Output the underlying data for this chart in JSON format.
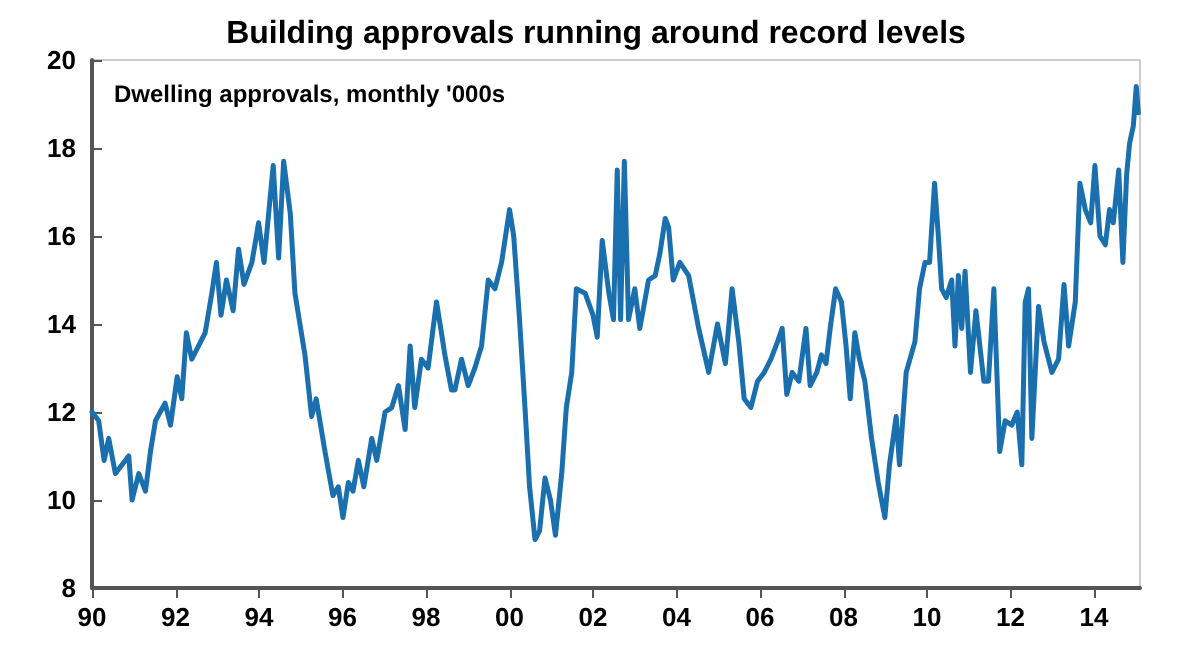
{
  "chart_data": {
    "type": "line",
    "title": "Building approvals running around record levels",
    "subtitle": "Dwelling approvals, monthly '000s",
    "series": [
      {
        "color": "#1a6fae",
        "x": [
          1990.0,
          1990.16,
          1990.29,
          1990.4,
          1990.56,
          1990.72,
          1990.88,
          1990.96,
          1991.12,
          1991.28,
          1991.4,
          1991.52,
          1991.75,
          1991.88,
          1992.04,
          1992.15,
          1992.26,
          1992.39,
          1992.71,
          1992.87,
          1992.98,
          1993.09,
          1993.22,
          1993.38,
          1993.51,
          1993.64,
          1993.83,
          1993.99,
          1994.12,
          1994.34,
          1994.47,
          1994.59,
          1994.75,
          1994.86,
          1995.1,
          1995.26,
          1995.37,
          1995.58,
          1995.77,
          1995.9,
          1996.01,
          1996.14,
          1996.25,
          1996.38,
          1996.51,
          1996.7,
          1996.82,
          1997.02,
          1997.18,
          1997.34,
          1997.5,
          1997.62,
          1997.73,
          1997.89,
          1998.05,
          1998.25,
          1998.37,
          1998.45,
          1998.61,
          1998.69,
          1998.85,
          1999.01,
          1999.17,
          1999.33,
          1999.49,
          1999.65,
          1999.81,
          2000.0,
          2000.1,
          2000.24,
          2000.37,
          2000.48,
          2000.61,
          2000.72,
          2000.85,
          2000.98,
          2001.1,
          2001.25,
          2001.36,
          2001.49,
          2001.6,
          2001.81,
          2002.0,
          2002.1,
          2002.22,
          2002.38,
          2002.49,
          2002.58,
          2002.66,
          2002.75,
          2002.85,
          2003.0,
          2003.12,
          2003.33,
          2003.49,
          2003.6,
          2003.73,
          2003.81,
          2003.92,
          2004.08,
          2004.29,
          2004.53,
          2004.77,
          2004.98,
          2005.17,
          2005.33,
          2005.49,
          2005.62,
          2005.78,
          2005.94,
          2006.1,
          2006.26,
          2006.42,
          2006.53,
          2006.64,
          2006.77,
          2006.93,
          2007.1,
          2007.2,
          2007.36,
          2007.47,
          2007.58,
          2007.68,
          2007.81,
          2007.95,
          2008.06,
          2008.16,
          2008.27,
          2008.38,
          2008.51,
          2008.67,
          2008.83,
          2008.99,
          2009.1,
          2009.26,
          2009.34,
          2009.5,
          2009.71,
          2009.82,
          2009.95,
          2010.06,
          2010.18,
          2010.27,
          2010.35,
          2010.46,
          2010.59,
          2010.67,
          2010.75,
          2010.83,
          2010.91,
          2011.04,
          2011.17,
          2011.36,
          2011.47,
          2011.6,
          2011.74,
          2011.87,
          2012.03,
          2012.16,
          2012.27,
          2012.35,
          2012.43,
          2012.51,
          2012.67,
          2012.8,
          2012.99,
          2013.15,
          2013.28,
          2013.39,
          2013.55,
          2013.66,
          2013.79,
          2013.92,
          2014.02,
          2014.14,
          2014.27,
          2014.37,
          2014.46,
          2014.59,
          2014.69,
          2014.78,
          2014.85,
          2014.94,
          2015.01,
          2015.06
        ],
        "values": [
          12.0,
          11.8,
          10.9,
          11.4,
          10.6,
          10.8,
          11.0,
          10.0,
          10.6,
          10.2,
          11.1,
          11.8,
          12.2,
          11.7,
          12.8,
          12.3,
          13.8,
          13.2,
          13.8,
          14.7,
          15.4,
          14.2,
          15.0,
          14.3,
          15.7,
          14.9,
          15.4,
          16.3,
          15.4,
          17.6,
          15.5,
          17.7,
          16.5,
          14.7,
          13.3,
          11.9,
          12.3,
          11.1,
          10.1,
          10.3,
          9.6,
          10.4,
          10.2,
          10.9,
          10.3,
          11.4,
          10.9,
          12.0,
          12.1,
          12.6,
          11.6,
          13.5,
          12.1,
          13.2,
          13.0,
          14.5,
          13.8,
          13.3,
          12.5,
          12.5,
          13.2,
          12.6,
          13.0,
          13.5,
          15.0,
          14.8,
          15.4,
          16.6,
          16.0,
          14.1,
          12.1,
          10.3,
          9.1,
          9.3,
          10.5,
          10.0,
          9.2,
          10.6,
          12.1,
          12.9,
          14.8,
          14.7,
          14.2,
          13.7,
          15.9,
          14.7,
          14.1,
          17.5,
          14.1,
          17.7,
          14.1,
          14.8,
          13.9,
          15.0,
          15.1,
          15.6,
          16.4,
          16.2,
          15.0,
          15.4,
          15.1,
          13.9,
          12.9,
          14.0,
          13.1,
          14.8,
          13.6,
          12.3,
          12.1,
          12.7,
          12.9,
          13.2,
          13.6,
          13.9,
          12.4,
          12.9,
          12.7,
          13.9,
          12.6,
          12.9,
          13.3,
          13.1,
          13.9,
          14.8,
          14.5,
          13.5,
          12.3,
          13.8,
          13.2,
          12.7,
          11.4,
          10.4,
          9.6,
          10.8,
          11.9,
          10.8,
          12.9,
          13.6,
          14.8,
          15.4,
          15.4,
          17.2,
          16.0,
          14.8,
          14.6,
          15.0,
          13.5,
          15.1,
          13.9,
          15.2,
          12.9,
          14.3,
          12.7,
          12.7,
          14.8,
          11.1,
          11.8,
          11.7,
          12.0,
          10.8,
          14.5,
          14.8,
          11.4,
          14.4,
          13.6,
          12.9,
          13.2,
          14.9,
          13.5,
          14.5,
          17.2,
          16.6,
          16.3,
          17.6,
          16.0,
          15.8,
          16.6,
          16.3,
          17.5,
          15.4,
          17.4,
          18.1,
          18.5,
          19.4,
          18.8
        ]
      }
    ],
    "xlim": [
      1990,
      2015.1
    ],
    "xticks": [
      {
        "value": 1990,
        "label": "90"
      },
      {
        "value": 1992,
        "label": "92"
      },
      {
        "value": 1994,
        "label": "94"
      },
      {
        "value": 1996,
        "label": "96"
      },
      {
        "value": 1998,
        "label": "98"
      },
      {
        "value": 2000,
        "label": "00"
      },
      {
        "value": 2002,
        "label": "02"
      },
      {
        "value": 2004,
        "label": "04"
      },
      {
        "value": 2006,
        "label": "06"
      },
      {
        "value": 2008,
        "label": "08"
      },
      {
        "value": 2010,
        "label": "10"
      },
      {
        "value": 2012,
        "label": "12"
      },
      {
        "value": 2014,
        "label": "14"
      }
    ],
    "ylim": [
      8,
      20
    ],
    "yticks": [
      8,
      10,
      12,
      14,
      16,
      18,
      20
    ],
    "grid": false,
    "marker": "none",
    "line_style": "solid"
  }
}
